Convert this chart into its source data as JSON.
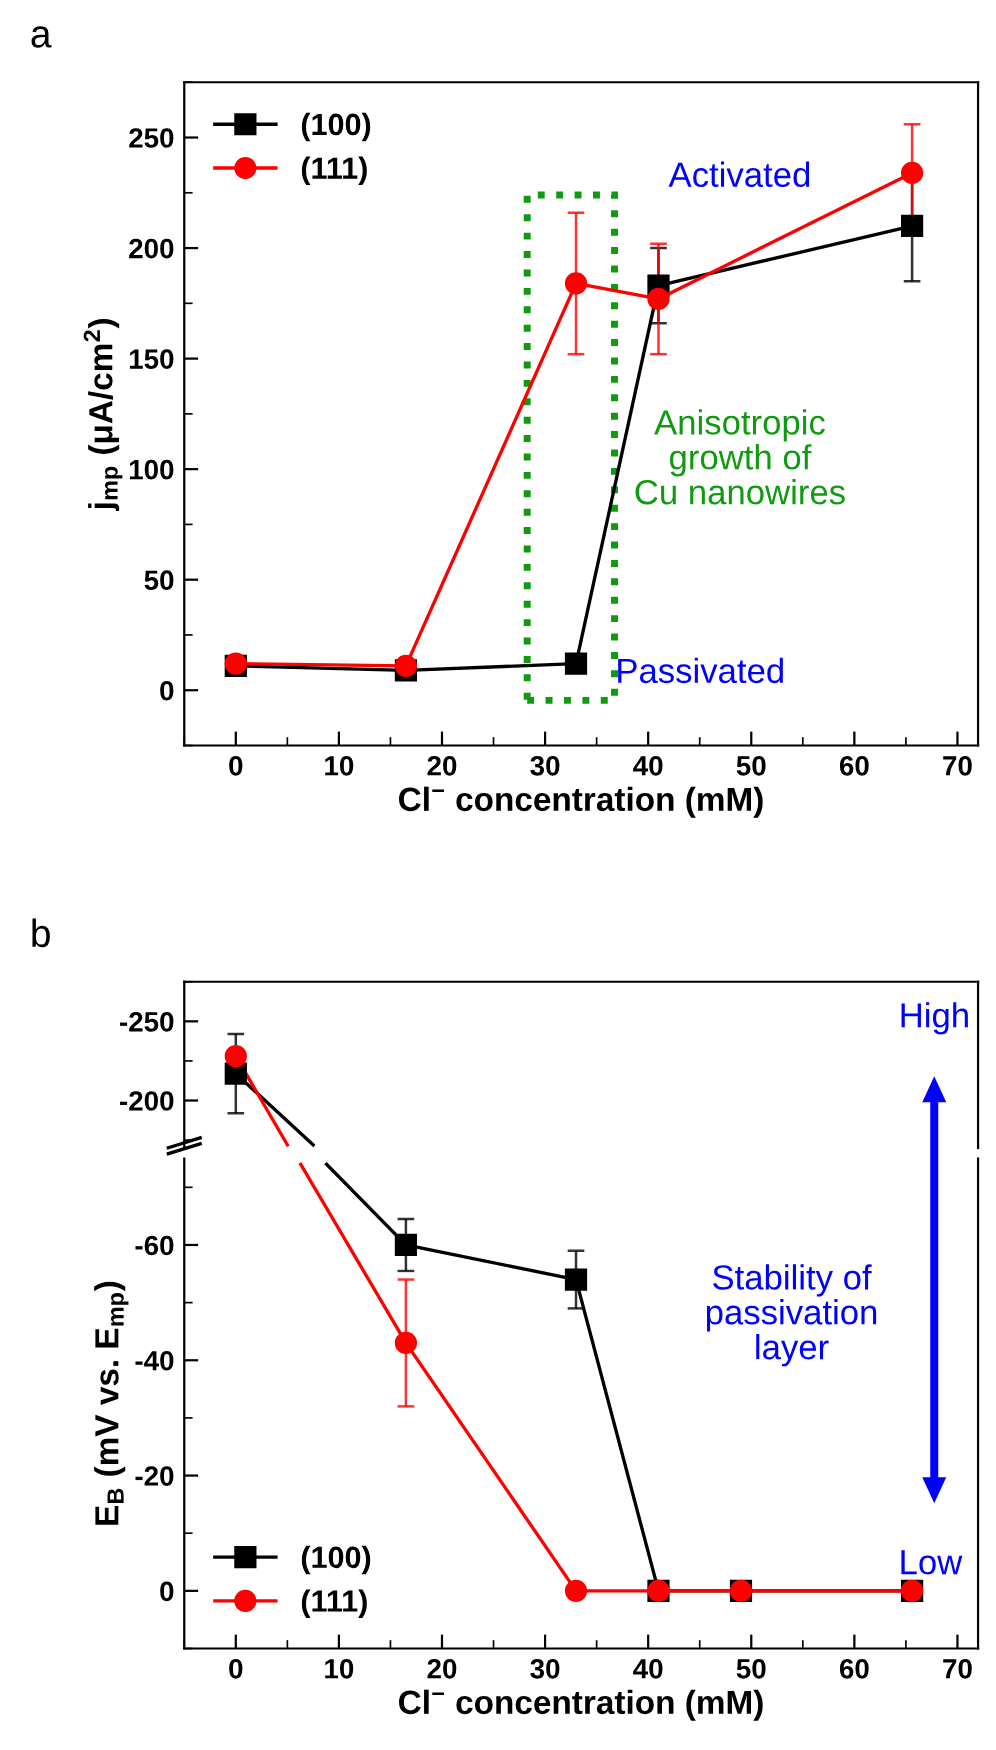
{
  "chart_data": [
    {
      "type": "line",
      "title": "a",
      "xlabel": "Cl$^{−}$ concentration (mM)",
      "ylabel": "j$_{mp}$ (μA/cm$^{2}$)",
      "xlim": [
        -5,
        72
      ],
      "xticks": [
        0,
        10,
        20,
        30,
        40,
        50,
        60,
        70
      ],
      "ylim": [
        -25,
        275
      ],
      "yticks": [
        0,
        50,
        100,
        150,
        200,
        250
      ],
      "legend": "top left",
      "line_style": "solid",
      "series": [
        {
          "name": "(100)",
          "color": "#000000",
          "marker": "square",
          "x": [
            0,
            16.5,
            33,
            41,
            65.6
          ],
          "values": [
            11,
            9,
            12,
            183,
            210
          ],
          "errors": [
            null,
            null,
            null,
            17,
            25
          ]
        },
        {
          "name": "(111)",
          "color": "#ff0000",
          "marker": "circle",
          "x": [
            0,
            16.5,
            33,
            41,
            65.6
          ],
          "values": [
            12,
            11,
            184,
            177,
            234
          ],
          "errors": [
            null,
            null,
            32,
            25,
            22
          ]
        }
      ],
      "annotations": [
        "Activated",
        "Anisotropic\ngrowth of\nCu nanowires",
        "Passivated"
      ]
    },
    {
      "type": "line",
      "title": "b",
      "tick_labels": "y",
      "xlim": [
        -5,
        72
      ],
      "xticks": [
        0,
        10,
        20,
        30,
        40,
        50,
        60,
        70
      ],
      "ylim": [
        -170,
        -275
      ],
      "yticks": [
        -200,
        -250
      ],
      "line_style": "solid",
      "series": [
        {
          "color": "#000000",
          "x": [
            0,
            7.5
          ],
          "values": [
            -217,
            -172
          ]
        },
        {
          "color": "#ff0000",
          "x": [
            0,
            5
          ],
          "values": [
            -228,
            -172
          ]
        },
        {
          "color": "#000000",
          "marker": "square",
          "x": [
            0
          ],
          "values": [
            -217
          ],
          "errors": [
            25
          ]
        },
        {
          "color": "#ff0000",
          "marker": "circle",
          "x": [
            0
          ],
          "values": [
            -228
          ]
        }
      ],
      "annotations": [
        "High"
      ]
    },
    {
      "type": "line",
      "xlabel": "Cl$^{−}$ concentration (mM)",
      "ylabel": "E$_{B}$ (mV vs. E$_{mp}$)",
      "xlim": [
        -5,
        72
      ],
      "xticks": [
        0,
        10,
        20,
        30,
        40,
        50,
        60,
        70
      ],
      "ylim": [
        10,
        -75
      ],
      "yticks": [
        0,
        -20,
        -40,
        -60
      ],
      "legend": "bottom left",
      "line_style": "solid",
      "series": [
        {
          "color": "#000000",
          "x": [
            8.8,
            16.5
          ],
          "values": [
            -74,
            -60
          ]
        },
        {
          "color": "#ff0000",
          "x": [
            6.3,
            16.5
          ],
          "values": [
            -74,
            -43
          ]
        },
        {
          "name": "(100)",
          "color": "#000000",
          "marker": "square",
          "x": [
            16.5,
            33,
            41,
            49,
            65.6
          ],
          "values": [
            -60,
            -54,
            0,
            0,
            0
          ],
          "errors": [
            4.5,
            5,
            null,
            null,
            null
          ]
        },
        {
          "name": "(111)",
          "color": "#ff0000",
          "marker": "circle",
          "x": [
            16.5,
            33,
            41,
            49,
            65.6
          ],
          "values": [
            -43,
            0,
            0,
            0,
            0
          ],
          "errors": [
            11,
            null,
            null,
            null,
            null
          ]
        }
      ],
      "annotations": [
        "Stability of\npassivation\nlayer",
        "Low"
      ]
    }
  ]
}
